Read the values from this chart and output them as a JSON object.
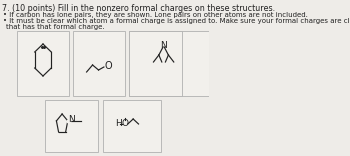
{
  "title": "7. (10 points) Fill in the nonzero formal charges on these structures.",
  "bullet1": "If carbon has lone pairs, they are shown. Lone pairs on other atoms are not included.",
  "bullet2": "It must be clear which atom a formal charge is assigned to. Make sure your formal charges are closest to the atom",
  "bullet2b": "that has that formal charge.",
  "bg_color": "#eeece8",
  "box_color": "#b0b0b0",
  "box_facecolor": "#f2f0ec",
  "text_color": "#222222",
  "font_size_title": 5.8,
  "font_size_bullet": 5.0,
  "font_size_struct": 7.0
}
